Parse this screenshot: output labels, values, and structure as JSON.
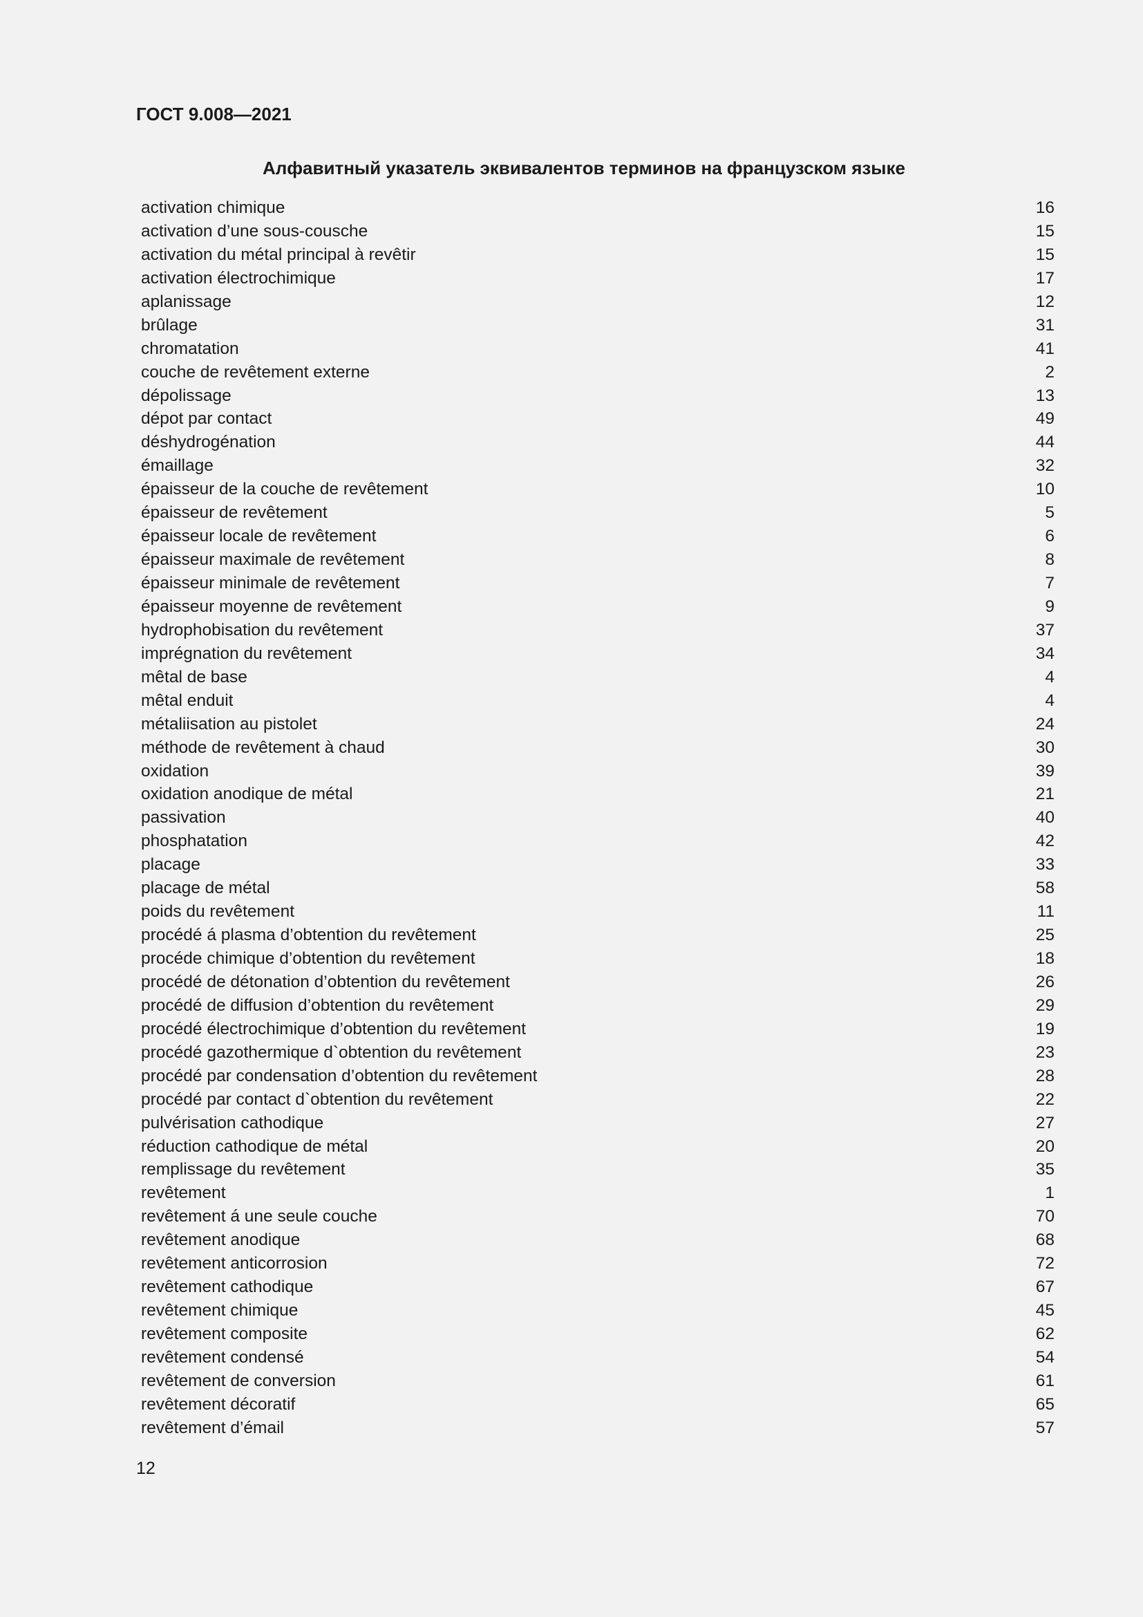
{
  "header": "ГОСТ 9.008—2021",
  "title": "Алфавитный указатель эквивалентов терминов на французском языке",
  "entries": [
    {
      "term": "activation chimique",
      "num": "16"
    },
    {
      "term": "activation d’une sous-cousche",
      "num": "15"
    },
    {
      "term": "activation du métal principal à revêtir",
      "num": "15"
    },
    {
      "term": "activation électrochimique",
      "num": "17"
    },
    {
      "term": "aplanissage",
      "num": "12"
    },
    {
      "term": "brûlage",
      "num": "31"
    },
    {
      "term": "chromatation",
      "num": "41"
    },
    {
      "term": "couche de revêtement externe",
      "num": "2"
    },
    {
      "term": "dépolissage",
      "num": "13"
    },
    {
      "term": "dépot par contact",
      "num": "49"
    },
    {
      "term": "déshydrogénation",
      "num": "44"
    },
    {
      "term": "émaillage",
      "num": "32"
    },
    {
      "term": "épaisseur de la couche de revêtement",
      "num": "10"
    },
    {
      "term": "épaisseur de revêtement",
      "num": "5"
    },
    {
      "term": "épaisseur locale de revêtement",
      "num": "6"
    },
    {
      "term": "épaisseur maximale de revêtement",
      "num": "8"
    },
    {
      "term": "épaisseur minimale de revêtement",
      "num": "7"
    },
    {
      "term": "épaisseur moyenne de revêtement",
      "num": "9"
    },
    {
      "term": "hydrophobisation du revêtement",
      "num": "37"
    },
    {
      "term": "imprégnation du revêtement",
      "num": "34"
    },
    {
      "term": "mêtal de base",
      "num": "4"
    },
    {
      "term": "mêtal enduit",
      "num": "4"
    },
    {
      "term": "métaliisation au pistolet",
      "num": "24"
    },
    {
      "term": "méthode de revêtement à chaud",
      "num": "30"
    },
    {
      "term": "oxidation",
      "num": "39"
    },
    {
      "term": "oxidation anodique de métal",
      "num": "21"
    },
    {
      "term": "passivation",
      "num": "40"
    },
    {
      "term": "phosphatation",
      "num": "42"
    },
    {
      "term": "placage",
      "num": "33"
    },
    {
      "term": "placage de métal",
      "num": "58"
    },
    {
      "term": "poids du revêtement",
      "num": "11"
    },
    {
      "term": "procédé á plasma d’obtention du revêtement",
      "num": "25"
    },
    {
      "term": "procéde chimique d’obtention du revêtement",
      "num": "18"
    },
    {
      "term": "procédé de détonation d’obtention du revêtement",
      "num": "26"
    },
    {
      "term": "procédé de diffusion d’obtention du revêtement",
      "num": "29"
    },
    {
      "term": "procédé électrochimique d’obtention du revêtement",
      "num": "19"
    },
    {
      "term": "procédé gazothermique d`obtention du revêtement",
      "num": "23"
    },
    {
      "term": "procédé par condensation d’obtention du revêtement",
      "num": "28"
    },
    {
      "term": "procédé par contact d`obtention du revêtement",
      "num": "22"
    },
    {
      "term": "pulvérisation cathodique",
      "num": "27"
    },
    {
      "term": "réduction cathodique de métal",
      "num": "20"
    },
    {
      "term": "remplissage du revêtement",
      "num": "35"
    },
    {
      "term": "revêtement",
      "num": "1"
    },
    {
      "term": "revêtement á une seule couche",
      "num": "70"
    },
    {
      "term": "revêtement anodique",
      "num": "68"
    },
    {
      "term": "revêtement anticorrosion",
      "num": "72"
    },
    {
      "term": "revêtement cathodique",
      "num": "67"
    },
    {
      "term": "revêtement chimique",
      "num": "45"
    },
    {
      "term": "revêtement composite",
      "num": "62"
    },
    {
      "term": "revêtement condensé",
      "num": "54"
    },
    {
      "term": "revêtement de conversion",
      "num": "61"
    },
    {
      "term": "revêtement décoratif",
      "num": "65"
    },
    {
      "term": "revêtement d’émail",
      "num": "57"
    }
  ],
  "page_number": "12"
}
